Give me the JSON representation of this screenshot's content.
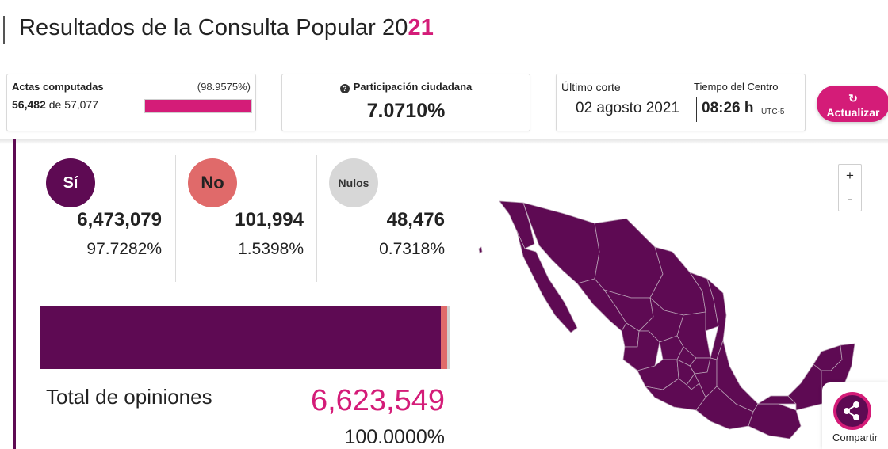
{
  "header": {
    "title_main": "Resultados de la Consulta Popular 20",
    "title_highlight": "21"
  },
  "actas": {
    "label": "Actas computadas",
    "percent": "(98.9575%)",
    "computed": "56,482",
    "of_word": "de",
    "total": "57,077",
    "progress_fraction": 0.989575
  },
  "participacion": {
    "label": "Participación ciudadana",
    "value": "7.0710%"
  },
  "corte": {
    "label": "Último corte",
    "tz_label": "Tiempo del Centro",
    "date": "02 agosto 2021",
    "time": "08:26 h",
    "tz": "UTC-5"
  },
  "actions": {
    "update_label": "Actualizar",
    "share_label": "Compartir"
  },
  "options": [
    {
      "key": "si",
      "label": "Sí",
      "votes": "6,473,079",
      "percent": "97.7282%"
    },
    {
      "key": "no",
      "label": "No",
      "votes": "101,994",
      "percent": "1.5398%"
    },
    {
      "key": "nulos",
      "label": "Nulos",
      "votes": "48,476",
      "percent": "0.7318%"
    }
  ],
  "stacked_bar": [
    {
      "key": "si",
      "fraction": 0.977282,
      "color": "#5e0a53"
    },
    {
      "key": "no",
      "fraction": 0.015398,
      "color": "#e06a6a"
    },
    {
      "key": "nulos",
      "fraction": 0.007318,
      "color": "#d0d0d0"
    }
  ],
  "total": {
    "label": "Total de opiniones",
    "value": "6,623,549",
    "percent": "100.0000%"
  },
  "map": {
    "zoom_in": "+",
    "zoom_out": "-",
    "fill_color": "#5e0a53",
    "border_color": "#b9a0b5"
  },
  "colors": {
    "accent": "#d41c78",
    "primary": "#5e0a53"
  }
}
